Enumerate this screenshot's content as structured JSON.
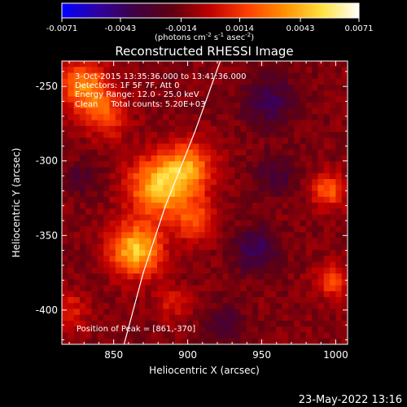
{
  "colorbar": {
    "tick_labels": [
      "-0.0071",
      "-0.0043",
      "-0.0014",
      "0.0014",
      "0.0043",
      "0.0071"
    ],
    "tick_values": [
      -0.0071,
      -0.0043,
      -0.0014,
      0.0014,
      0.0043,
      0.0071
    ],
    "range": [
      -0.0071,
      0.0071
    ],
    "units_main": "(photons cm",
    "units_sup1": "-2",
    "units_mid": " s",
    "units_sup2": "-1",
    "units_end": " asec",
    "units_sup3": "-2",
    "units_close": ")",
    "colors": [
      "#0000ff",
      "#3000a0",
      "#400040",
      "#600010",
      "#c00000",
      "#ff4000",
      "#ff9000",
      "#ffe040",
      "#ffffff"
    ]
  },
  "chart_data": {
    "type": "heatmap",
    "title": "Reconstructed RHESSI Image",
    "xlabel": "Heliocentric X (arcsec)",
    "ylabel": "Heliocentric Y (arcsec)",
    "xlim": [
      815,
      1008
    ],
    "ylim": [
      -423,
      -233
    ],
    "x_ticks": [
      850,
      900,
      950,
      1000
    ],
    "y_ticks": [
      -250,
      -300,
      -350,
      -400
    ],
    "grid": false,
    "peak": [
      861,
      -370
    ],
    "blobs": [
      {
        "x": 880,
        "y": -318,
        "amp": 0.0055,
        "sigma": 14
      },
      {
        "x": 865,
        "y": -360,
        "amp": 0.006,
        "sigma": 12
      },
      {
        "x": 900,
        "y": -305,
        "amp": 0.0045,
        "sigma": 12
      },
      {
        "x": 830,
        "y": -250,
        "amp": 0.0045,
        "sigma": 12
      },
      {
        "x": 845,
        "y": -270,
        "amp": 0.003,
        "sigma": 10
      },
      {
        "x": 905,
        "y": -340,
        "amp": 0.003,
        "sigma": 10
      },
      {
        "x": 995,
        "y": -320,
        "amp": 0.0035,
        "sigma": 8
      },
      {
        "x": 998,
        "y": -380,
        "amp": 0.003,
        "sigma": 8
      },
      {
        "x": 820,
        "y": -400,
        "amp": 0.002,
        "sigma": 9
      },
      {
        "x": 890,
        "y": -395,
        "amp": 0.0018,
        "sigma": 8
      },
      {
        "x": 955,
        "y": -260,
        "amp": -0.0025,
        "sigma": 12
      },
      {
        "x": 945,
        "y": -360,
        "amp": -0.003,
        "sigma": 10
      },
      {
        "x": 960,
        "y": -310,
        "amp": -0.002,
        "sigma": 10
      },
      {
        "x": 925,
        "y": -410,
        "amp": -0.002,
        "sigma": 9
      },
      {
        "x": 830,
        "y": -310,
        "amp": -0.0015,
        "sigma": 8
      }
    ],
    "limb": [
      [
        922,
        -233
      ],
      [
        905,
        -280
      ],
      [
        885,
        -330
      ],
      [
        870,
        -375
      ],
      [
        857,
        -423
      ]
    ]
  },
  "info": {
    "line1": "3-Oct-2015 13:35:36.000 to 13:41:36.000",
    "line2": "Detectors: 1F 5F 7F, Att 0",
    "line3": "Energy Range: 12.0 - 25.0 keV",
    "line4": "Clean     Total counts: 5.20E+03",
    "peak_label": "Position of Peak = [861,-370]"
  },
  "footer_date": "23-May-2022 13:16"
}
